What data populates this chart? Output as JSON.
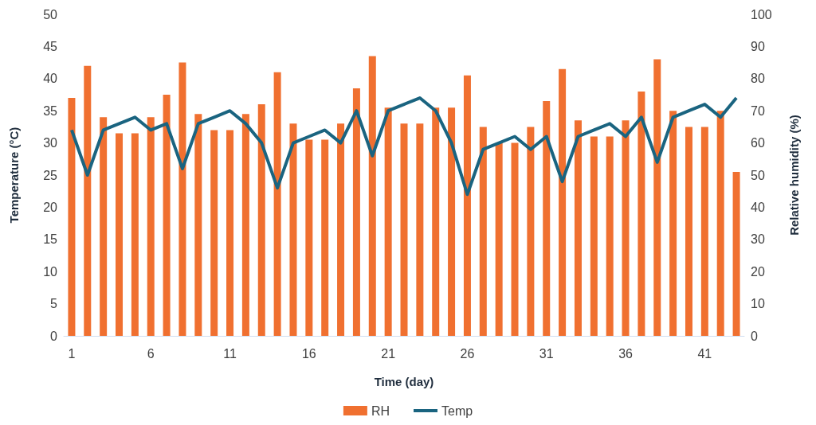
{
  "chart_data": {
    "type": "bar",
    "xlabel": "Time (day)",
    "ylabel": "Temperature (°C)",
    "y2label": "Relative humidity (%)",
    "x": [
      1,
      2,
      3,
      4,
      5,
      6,
      7,
      8,
      9,
      10,
      11,
      12,
      13,
      14,
      15,
      16,
      17,
      18,
      19,
      20,
      21,
      22,
      23,
      24,
      25,
      26,
      27,
      28,
      29,
      30,
      31,
      32,
      33,
      34,
      35,
      36,
      37,
      38,
      39,
      40,
      41,
      42,
      43
    ],
    "xlim": [
      0.5,
      43.5
    ],
    "xticks": [
      1,
      6,
      11,
      16,
      21,
      26,
      31,
      36,
      41
    ],
    "series": [
      {
        "name": "RH",
        "axis": "y2",
        "color": "#f07030",
        "values": [
          74,
          84,
          68,
          63,
          63,
          68,
          75,
          85,
          69,
          64,
          64,
          69,
          72,
          82,
          66,
          61,
          61,
          66,
          77,
          87,
          71,
          66,
          66,
          71,
          71,
          81,
          65,
          60,
          60,
          65,
          73,
          83,
          67,
          62,
          62,
          67,
          76,
          86,
          70,
          65,
          65,
          70,
          51
        ]
      },
      {
        "name": "Temp",
        "type": "line",
        "color": "#1a6480",
        "marker": "none",
        "values": [
          32,
          25,
          32,
          33,
          34,
          32,
          33,
          26,
          33,
          34,
          35,
          33,
          30,
          23,
          30,
          31,
          32,
          30,
          35,
          28,
          35,
          36,
          37,
          35,
          30,
          22,
          29,
          30,
          31,
          29,
          31,
          24,
          31,
          32,
          33,
          31,
          34,
          27,
          34,
          35,
          36,
          34,
          37
        ]
      }
    ],
    "ylim": [
      0,
      50
    ],
    "yticks": [
      0,
      5,
      10,
      15,
      20,
      25,
      30,
      35,
      40,
      45,
      50
    ],
    "y2lim": [
      0,
      100
    ],
    "y2ticks": [
      0,
      10,
      20,
      30,
      40,
      50,
      60,
      70,
      80,
      90,
      100
    ],
    "grid": false,
    "legend": "bottom"
  }
}
